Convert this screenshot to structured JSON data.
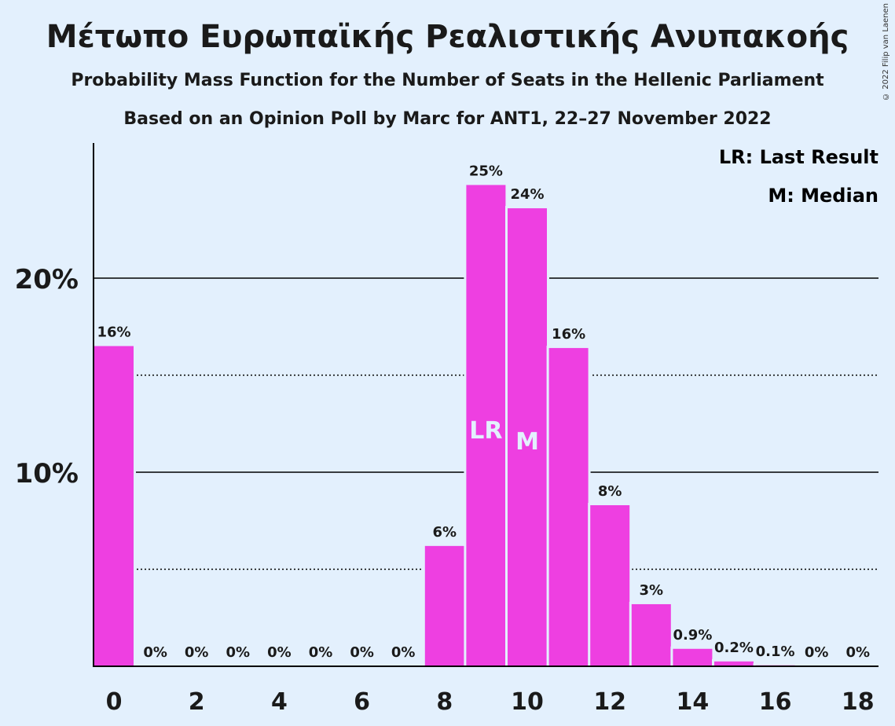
{
  "title": "Μέτωπο Ευρωπαϊκής Ρεαλιστικής Ανυπακοής",
  "subtitle1": "Probability Mass Function for the Number of Seats in the Hellenic Parliament",
  "subtitle2": "Based on an Opinion Poll by Marc for ANT1, 22–27 November 2022",
  "copyright": "© 2022 Filip van Laenen",
  "legend": {
    "lr": "LR: Last Result",
    "m": "M: Median"
  },
  "colors": {
    "bar": "#ee3fe1",
    "background": "#e3f0fd"
  },
  "chart_data": {
    "type": "bar",
    "x": [
      0,
      1,
      2,
      3,
      4,
      5,
      6,
      7,
      8,
      9,
      10,
      11,
      12,
      13,
      14,
      15,
      16,
      17,
      18
    ],
    "values": [
      16.5,
      0,
      0,
      0,
      0,
      0,
      0,
      0,
      6.2,
      24.8,
      23.6,
      16.4,
      8.3,
      3.2,
      0.9,
      0.25,
      0.05,
      0,
      0
    ],
    "labels": [
      "16%",
      "0%",
      "0%",
      "0%",
      "0%",
      "0%",
      "0%",
      "0%",
      "6%",
      "25%",
      "24%",
      "16%",
      "8%",
      "3%",
      "0.9%",
      "0.2%",
      "0.1%",
      "0%",
      "0%"
    ],
    "xticks": [
      "0",
      "2",
      "4",
      "6",
      "8",
      "10",
      "12",
      "14",
      "16",
      "18"
    ],
    "yticks": [
      "10%",
      "20%"
    ],
    "ylim": [
      0,
      27
    ],
    "markers": [
      {
        "x": 9,
        "text": "LR"
      },
      {
        "x": 10,
        "text": "M"
      }
    ],
    "gridlines": {
      "solid": [
        10,
        20
      ],
      "dotted": [
        5,
        15
      ]
    }
  }
}
